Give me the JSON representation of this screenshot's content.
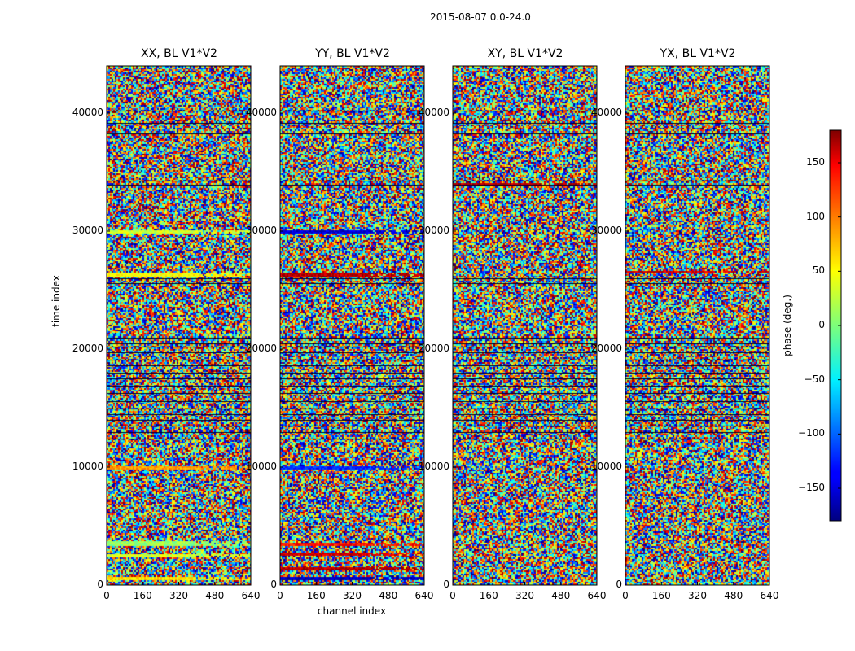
{
  "figure": {
    "suptitle": "2015-08-07 0.0-24.0",
    "ylabel": "time index",
    "xlabel": "channel index",
    "colorbar_label": "phase (deg.)",
    "colorbar_ticks": [
      "150",
      "100",
      "50",
      "0",
      "−50",
      "−100",
      "−150"
    ],
    "colormap": "jet"
  },
  "chart_data": [
    {
      "type": "heatmap",
      "title": "XX, BL V1*V2",
      "xlabel": "channel index",
      "ylabel": "time index",
      "xlim": [
        0,
        640
      ],
      "ylim": [
        0,
        44000
      ],
      "xticks": [
        0,
        160,
        320,
        480,
        640
      ],
      "yticks": [
        0,
        10000,
        20000,
        30000,
        40000
      ],
      "value_range": [
        -180,
        180
      ],
      "coherent_bands": [
        {
          "t_start": 29800,
          "t_end": 30200,
          "phase": 30
        },
        {
          "t_start": 26200,
          "t_end": 26600,
          "phase": 45
        },
        {
          "t_start": 9800,
          "t_end": 10100,
          "phase": 80
        },
        {
          "t_start": 3400,
          "t_end": 3800,
          "phase": 10
        },
        {
          "t_start": 2400,
          "t_end": 2700,
          "phase": 30
        },
        {
          "t_start": 500,
          "t_end": 700,
          "phase": 55
        }
      ]
    },
    {
      "type": "heatmap",
      "title": "YY, BL V1*V2",
      "xlabel": "channel index",
      "ylabel": "time index",
      "xlim": [
        0,
        640
      ],
      "ylim": [
        0,
        44000
      ],
      "xticks": [
        0,
        160,
        320,
        480,
        640
      ],
      "yticks": [
        0,
        10000,
        20000,
        30000,
        40000
      ],
      "value_range": [
        -180,
        180
      ],
      "coherent_bands": [
        {
          "t_start": 29800,
          "t_end": 30200,
          "phase": -150
        },
        {
          "t_start": 26200,
          "t_end": 26600,
          "phase": 160
        },
        {
          "t_start": 9800,
          "t_end": 10100,
          "phase": -120
        },
        {
          "t_start": 3400,
          "t_end": 3700,
          "phase": 130
        },
        {
          "t_start": 2500,
          "t_end": 2800,
          "phase": 150
        },
        {
          "t_start": 1300,
          "t_end": 1600,
          "phase": 160
        },
        {
          "t_start": 500,
          "t_end": 700,
          "phase": -160
        }
      ]
    },
    {
      "type": "heatmap",
      "title": "XY, BL V1*V2",
      "xlabel": "channel index",
      "ylabel": "time index",
      "xlim": [
        0,
        640
      ],
      "ylim": [
        0,
        44000
      ],
      "xticks": [
        0,
        160,
        320,
        480,
        640
      ],
      "yticks": [
        0,
        10000,
        20000,
        30000,
        40000
      ],
      "value_range": [
        -180,
        180
      ],
      "coherent_bands": [
        {
          "t_start": 33800,
          "t_end": 34100,
          "phase": 160
        }
      ]
    },
    {
      "type": "heatmap",
      "title": "YX, BL V1*V2",
      "xlabel": "channel index",
      "ylabel": "time index",
      "xlim": [
        0,
        640
      ],
      "ylim": [
        0,
        44000
      ],
      "xticks": [
        0,
        160,
        320,
        480,
        640
      ],
      "yticks": [
        0,
        10000,
        20000,
        30000,
        40000
      ],
      "value_range": [
        -180,
        180
      ],
      "coherent_bands": [
        {
          "t_start": 26500,
          "t_end": 26700,
          "phase": 150
        }
      ]
    }
  ]
}
